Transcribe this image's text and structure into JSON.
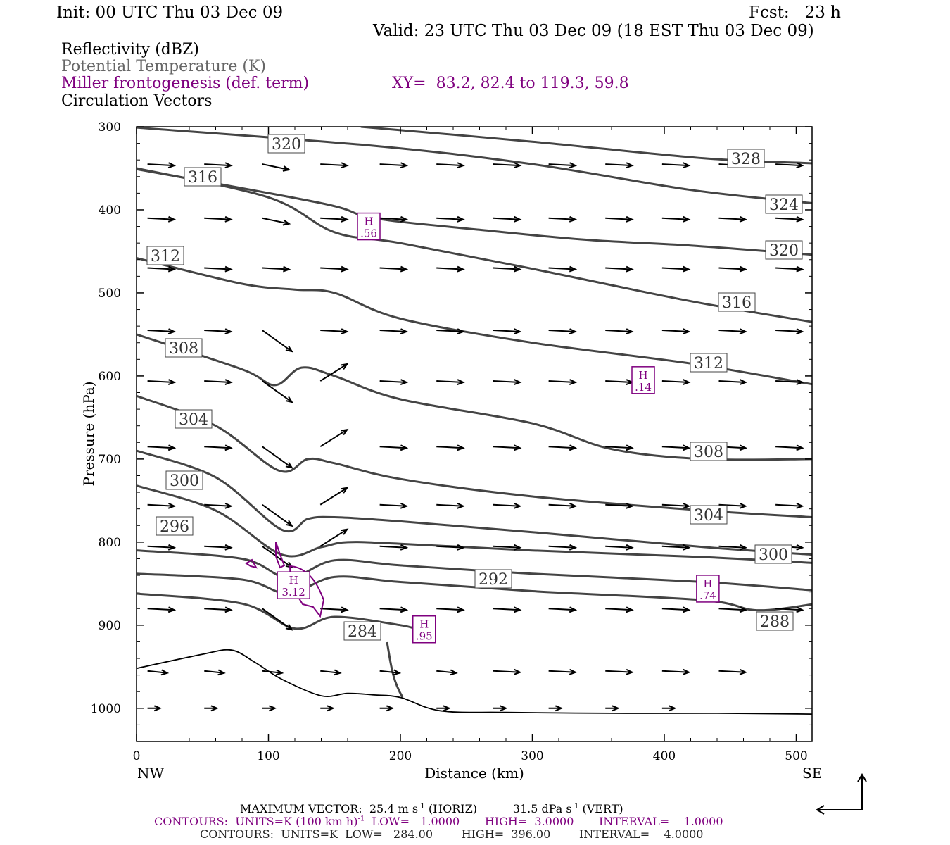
{
  "header": {
    "init": "Init: 00 UTC Thu 03 Dec 09",
    "fcst": "Fcst:   23 h",
    "valid": "Valid: 23 UTC Thu 03 Dec 09 (18 EST Thu 03 Dec 09)"
  },
  "legend": {
    "reflectivity": "Reflectivity (dBZ)",
    "theta": "Potential Temperature (K)",
    "miller": "Miller frontogenesis (def. term)",
    "xy": "XY=  83.2, 82.4 to 119.3, 59.8",
    "circulation": "Circulation Vectors"
  },
  "footer": {
    "max_vector": "MAXIMUM VECTOR:  25.4 m s",
    "horiz": "(HORIZ)",
    "vert_val": "31.5 dPa s",
    "vert": "(VERT)",
    "neg1": "-1",
    "contours_purple": "CONTOURS:  UNITS=K (100 km h)",
    "contours_purple_rest": "LOW=   1.0000       HIGH=  3.0000       INTERVAL=    1.0000",
    "contours_gray": "CONTOURS:  UNITS=K  LOW=   284.00        HIGH=  396.00        INTERVAL=    4.0000"
  },
  "colors": {
    "theta": "#444444",
    "miller": "#7f007f",
    "vector": "#000000"
  },
  "chart_data": {
    "type": "line",
    "xlabel": "Distance (km)",
    "ylabel": "Pressure (hPa)",
    "xlim": [
      0,
      512
    ],
    "ylim": [
      1040,
      300
    ],
    "y_scale": "linear, inverted",
    "x_ticks": [
      "0",
      "100",
      "200",
      "300",
      "400",
      "500"
    ],
    "y_ticks": [
      "300",
      "400",
      "500",
      "600",
      "700",
      "800",
      "900",
      "1000"
    ],
    "x_end_labels": {
      "left": "NW",
      "right": "SE"
    },
    "theta_contours": [
      {
        "value": "328",
        "x": [
          170,
          300,
          430,
          512
        ],
        "y": [
          300,
          318,
          338,
          344
        ]
      },
      {
        "value": "324",
        "x": [
          0,
          180,
          300,
          420,
          512
        ],
        "y": [
          301,
          323,
          345,
          376,
          392
        ]
      },
      {
        "value": "320",
        "x": [
          0,
          140,
          180,
          260,
          340,
          420,
          512
        ],
        "y": [
          351,
          392,
          410,
          424,
          436,
          443,
          454
        ]
      },
      {
        "value": "316",
        "x": [
          0,
          100,
          150,
          200,
          300,
          420,
          512
        ],
        "y": [
          350,
          385,
          427,
          440,
          471,
          510,
          535
        ]
      },
      {
        "value": "312",
        "x": [
          0,
          80,
          120,
          150,
          200,
          300,
          420,
          512
        ],
        "y": [
          458,
          489,
          496,
          500,
          531,
          560,
          585,
          610
        ]
      },
      {
        "value": "308",
        "x": [
          0,
          80,
          105,
          125,
          150,
          200,
          300,
          360,
          430,
          512
        ],
        "y": [
          550,
          592,
          611,
          590,
          600,
          628,
          657,
          688,
          700,
          700
        ]
      },
      {
        "value": "304",
        "x": [
          0,
          60,
          108,
          130,
          150,
          200,
          300,
          430,
          512
        ],
        "y": [
          624,
          660,
          714,
          700,
          705,
          724,
          745,
          762,
          770
        ]
      },
      {
        "value": "300",
        "x": [
          0,
          60,
          110,
          130,
          150,
          200,
          300,
          430,
          512
        ],
        "y": [
          690,
          722,
          785,
          772,
          770,
          775,
          788,
          806,
          815
        ]
      },
      {
        "value": "296",
        "x": [
          0,
          60,
          110,
          140,
          160,
          200,
          300,
          430,
          512
        ],
        "y": [
          732,
          762,
          815,
          806,
          800,
          802,
          810,
          818,
          825
        ]
      },
      {
        "value": "292",
        "x": [
          0,
          80,
          115,
          150,
          200,
          300,
          430,
          512
        ],
        "y": [
          810,
          820,
          843,
          822,
          828,
          838,
          848,
          858
        ]
      },
      {
        "value": "288",
        "x": [
          0,
          80,
          115,
          150,
          200,
          300,
          430,
          470,
          512
        ],
        "y": [
          838,
          845,
          862,
          842,
          848,
          859,
          870,
          882,
          875
        ]
      },
      {
        "value": "284",
        "x": [
          0,
          80,
          120,
          150,
          200,
          212
        ],
        "y": [
          862,
          874,
          904,
          890,
          900,
          905
        ]
      }
    ],
    "terrain": {
      "x": [
        0,
        50,
        72,
        90,
        110,
        140,
        160,
        180,
        200,
        230,
        280,
        360,
        440,
        512
      ],
      "y": [
        952,
        935,
        930,
        945,
        965,
        985,
        982,
        984,
        987,
        1003,
        1005,
        1006,
        1006,
        1007
      ]
    },
    "theta_labels": [
      "320",
      "316",
      "312",
      "308",
      "304",
      "300",
      "296",
      "292",
      "284",
      "328",
      "324",
      "320",
      "316",
      "312",
      "308",
      "304",
      "300",
      "288"
    ],
    "miller_maxima": [
      {
        "label": "H",
        "value": ".56",
        "x": 176,
        "y": 420
      },
      {
        "label": "H",
        "value": ".14",
        "x": 384,
        "y": 605
      },
      {
        "label": "H",
        "value": "3.12",
        "x": 119,
        "y": 852
      },
      {
        "label": "H",
        "value": ".74",
        "x": 433,
        "y": 856
      },
      {
        "label": "H",
        "value": ".95",
        "x": 218,
        "y": 905
      }
    ],
    "vectors_note": "Circulation vectors on regular grid, generally west-to-east with descent near 100 km"
  }
}
